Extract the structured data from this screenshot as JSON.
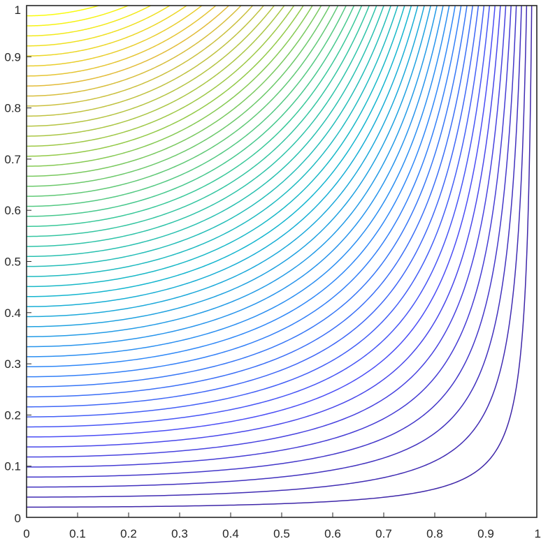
{
  "chart_data": {
    "type": "contour",
    "title": "",
    "xlabel": "",
    "ylabel": "",
    "xlim": [
      0,
      1
    ],
    "ylim": [
      0,
      1
    ],
    "grid": false,
    "legend": "none",
    "x_ticks": [
      "0",
      "0.1",
      "0.2",
      "0.3",
      "0.4",
      "0.5",
      "0.6",
      "0.7",
      "0.8",
      "0.9",
      "1"
    ],
    "y_ticks": [
      "0",
      "0.1",
      "0.2",
      "0.3",
      "0.4",
      "0.5",
      "0.6",
      "0.7",
      "0.8",
      "0.9",
      "1"
    ],
    "surface": "z = y * (1 - x^2)",
    "level_count": 50,
    "level_range": [
      0.02,
      0.98
    ],
    "colormap": [
      "#3e26a8",
      "#4a4df5",
      "#2e87f7",
      "#14b5cf",
      "#39c899",
      "#93ca48",
      "#e2bc3a",
      "#f9fb0e"
    ],
    "axis_color": "#262626"
  }
}
